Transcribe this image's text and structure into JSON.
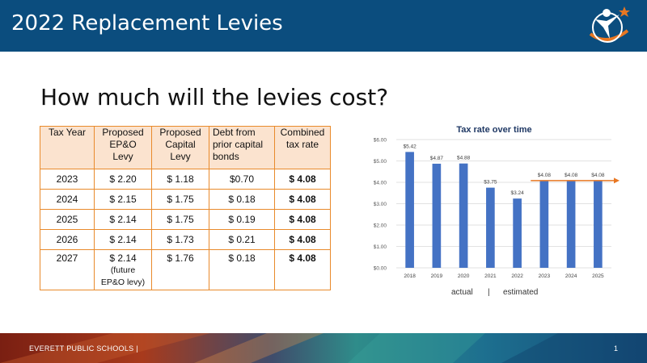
{
  "header": {
    "title": "2022 Replacement Levies"
  },
  "subtitle": "How much will the levies cost?",
  "table": {
    "headers": [
      [
        "Tax Year"
      ],
      [
        "Proposed",
        "EP&O",
        "Levy"
      ],
      [
        "Proposed",
        "Capital",
        "Levy"
      ],
      [
        "Debt from",
        "prior capital",
        "bonds"
      ],
      [
        "Combined",
        "tax rate"
      ]
    ],
    "rows": [
      [
        "2023",
        "$ 2.20",
        "$ 1.18",
        "$0.70",
        "$ 4.08"
      ],
      [
        "2024",
        "$ 2.15",
        "$ 1.75",
        "$ 0.18",
        "$ 4.08"
      ],
      [
        "2025",
        "$ 2.14",
        "$ 1.75",
        "$ 0.19",
        "$ 4.08"
      ],
      [
        "2026",
        "$ 2.14",
        "$ 1.73",
        "$ 0.21",
        "$ 4.08"
      ]
    ],
    "last_row": {
      "year": "2027",
      "epo_value": "$ 2.14",
      "epo_note_1": "(future",
      "epo_note_2": "EP&O levy)",
      "capital": "$ 1.76",
      "debt": "$ 0.18",
      "combined": "$ 4.08"
    }
  },
  "chart_data": {
    "type": "bar",
    "title": "Tax rate over time",
    "categories": [
      "2018",
      "2019",
      "2020",
      "2021",
      "2022",
      "2023",
      "2024",
      "2025"
    ],
    "values": [
      5.42,
      4.87,
      4.88,
      3.75,
      3.24,
      4.08,
      4.08,
      4.08
    ],
    "data_labels": [
      "$5.42",
      "$4.87",
      "$4.88",
      "$3.75",
      "$3.24",
      "$4.08",
      "$4.08",
      "$4.08"
    ],
    "yticks": [
      "$0.00",
      "$1.00",
      "$2.00",
      "$3.00",
      "$4.00",
      "$5.00",
      "$6.00"
    ],
    "ylim": [
      0,
      6
    ],
    "bar_color": "#4472c4",
    "annotation_line": {
      "value": 4.08,
      "color": "#e87722"
    },
    "legend": {
      "actual": "actual",
      "separator": "|",
      "estimated": "estimated"
    },
    "grid": true
  },
  "footer": {
    "org": "EVERETT PUBLIC SCHOOLS  |",
    "page": "1"
  },
  "colors": {
    "header_bg": "#0b4d7e",
    "table_header_bg": "#fbe3cf",
    "table_border": "#e98a2b",
    "accent_orange": "#e87722"
  }
}
